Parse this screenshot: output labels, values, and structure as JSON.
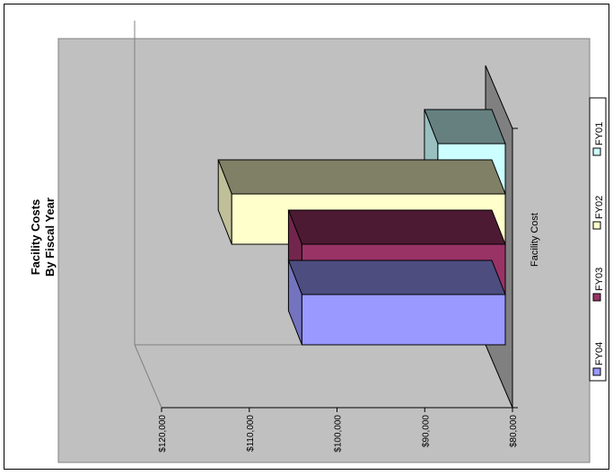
{
  "chart_data": {
    "type": "bar",
    "title": "Facility Costs",
    "subtitle": "By Fiscal Year",
    "xlabel": "",
    "ylabel": "",
    "categories": [
      "Facility Cost"
    ],
    "series": [
      {
        "name": "FY01",
        "values": [
          88500
        ],
        "color": "#ccffff"
      },
      {
        "name": "FY02",
        "values": [
          112000
        ],
        "color": "#ffffcc"
      },
      {
        "name": "FY03",
        "values": [
          104000
        ],
        "color": "#993366"
      },
      {
        "name": "FY04",
        "values": [
          104000
        ],
        "color": "#9999ff"
      }
    ],
    "ylim": [
      80000,
      120000
    ],
    "yticks": [
      "$80,000",
      "$90,000",
      "$100,000",
      "$110,000",
      "$120,000"
    ],
    "legend": {
      "position": "right",
      "order": [
        "FY04",
        "FY03",
        "FY02",
        "FY01"
      ]
    },
    "grid": false,
    "three_d": true,
    "rotated": true,
    "colors": {
      "plot_area": "#c0c0c0",
      "wall": "#c0c0c0",
      "floor": "#808080",
      "border": "#000000"
    }
  }
}
